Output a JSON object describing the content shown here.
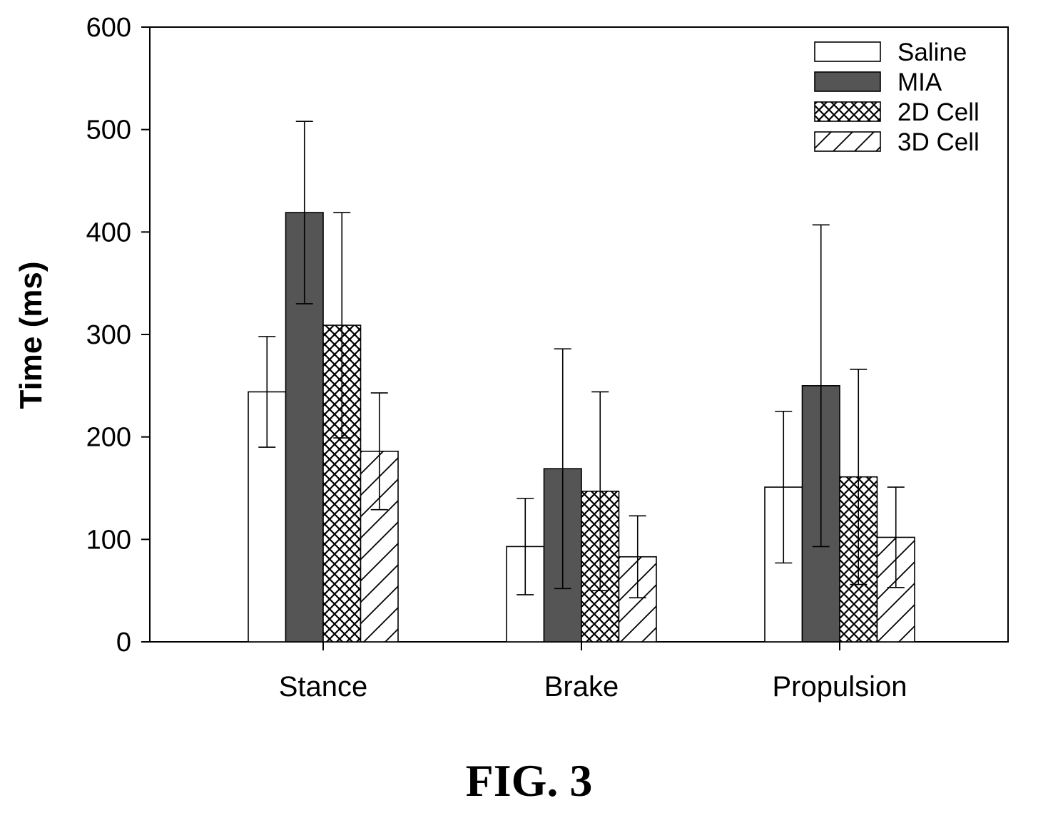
{
  "chart_data": {
    "type": "bar",
    "ylabel": "Time (ms)",
    "ylim": [
      0,
      600
    ],
    "yticks": [
      0,
      100,
      200,
      300,
      400,
      500,
      600
    ],
    "categories": [
      "Stance",
      "Brake",
      "Propulsion"
    ],
    "series": [
      {
        "name": "Saline",
        "pattern": "none",
        "values": [
          244,
          93,
          151
        ],
        "errors": [
          54,
          47,
          74
        ]
      },
      {
        "name": "MIA",
        "pattern": "solid-gray",
        "values": [
          419,
          169,
          250
        ],
        "errors": [
          89,
          117,
          157
        ]
      },
      {
        "name": "2D Cell",
        "pattern": "crosshatch",
        "values": [
          309,
          147,
          161
        ],
        "errors": [
          110,
          97,
          105
        ]
      },
      {
        "name": "3D Cell",
        "pattern": "diagonal",
        "values": [
          186,
          83,
          102
        ],
        "errors": [
          57,
          40,
          49
        ]
      }
    ],
    "legend_position": "top-right",
    "grid": false
  },
  "figure": {
    "caption": "FIG. 3"
  },
  "colors": {
    "mia_fill": "#555555",
    "axis": "#000000"
  }
}
